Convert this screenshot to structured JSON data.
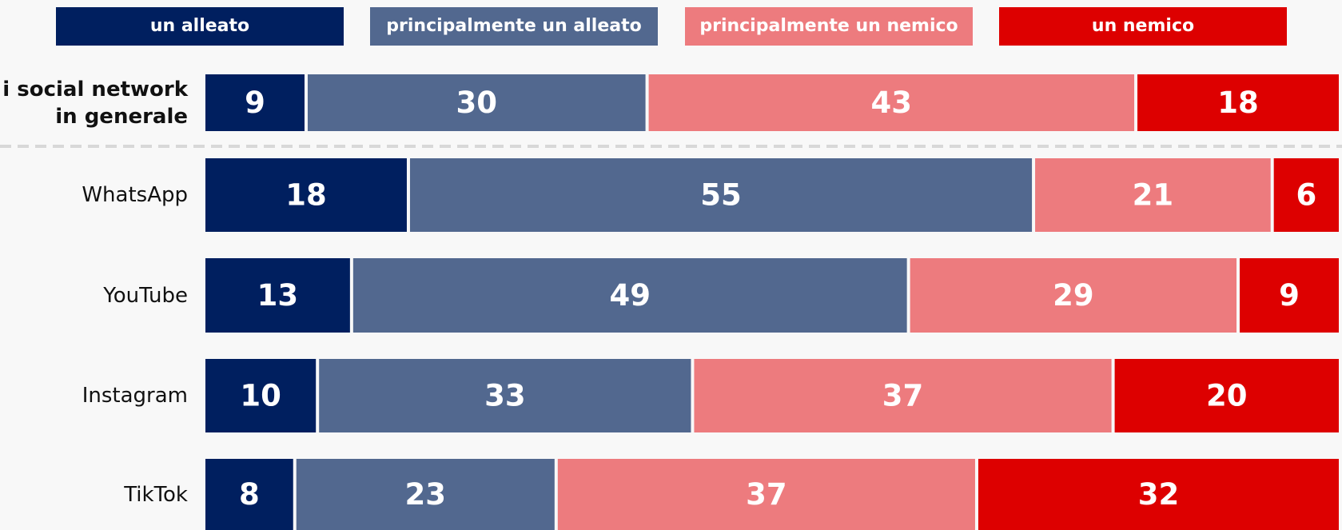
{
  "chart_data": {
    "type": "bar",
    "orientation": "horizontal",
    "stacked": true,
    "categories": [
      "i social network in generale",
      "WhatsApp",
      "YouTube",
      "Instagram",
      "TikTok"
    ],
    "xlim": [
      0,
      100
    ],
    "series": [
      {
        "name": "un alleato",
        "color": "#001f5f",
        "values": [
          9,
          18,
          13,
          10,
          8
        ]
      },
      {
        "name": "principalmente un alleato",
        "color": "#52688f",
        "values": [
          30,
          55,
          49,
          33,
          23
        ]
      },
      {
        "name": "principalmente un nemico",
        "color": "#ed7b7e",
        "values": [
          43,
          21,
          29,
          37,
          37
        ]
      },
      {
        "name": "un nemico",
        "color": "#dd0000",
        "values": [
          18,
          6,
          9,
          20,
          32
        ]
      }
    ]
  }
}
